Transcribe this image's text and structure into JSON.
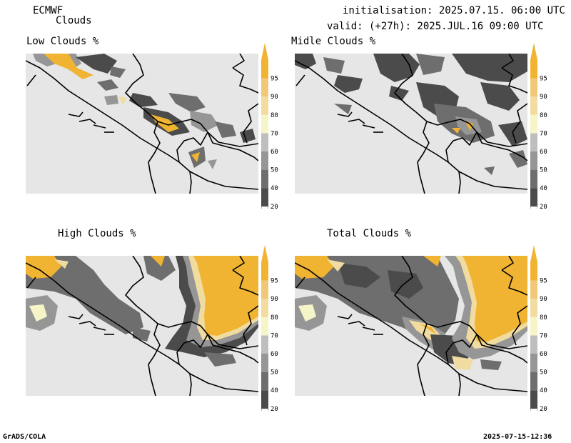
{
  "header": {
    "model": "ECMWF",
    "field": "Clouds",
    "initialisation": "initialisation: 2025.07.15. 06:00 UTC",
    "valid": "valid: (+27h): 2025.JUL.16 09:00 UTC"
  },
  "panels": [
    {
      "title": "Low Clouds %"
    },
    {
      "title": "Midle Clouds %"
    },
    {
      "title": "High Clouds %"
    },
    {
      "title": "Total Clouds %"
    }
  ],
  "colorbar": {
    "labels": [
      "20",
      "40",
      "50",
      "60",
      "70",
      "80",
      "90",
      "95"
    ],
    "colors": {
      "lt20": "#ffffff",
      "c20_40": "#4b4b4b",
      "c40_50": "#6e6e6e",
      "c50_60": "#969696",
      "c60_70": "#bebebe",
      "c70_80": "#f5f5c8",
      "c80_90": "#f2dca0",
      "c90_95": "#f0c878",
      "gt95": "#f0b432",
      "land": "#e6e6e6"
    }
  },
  "footer": {
    "left": "GrADS/COLA",
    "right": "2025-07-15-12:36"
  }
}
